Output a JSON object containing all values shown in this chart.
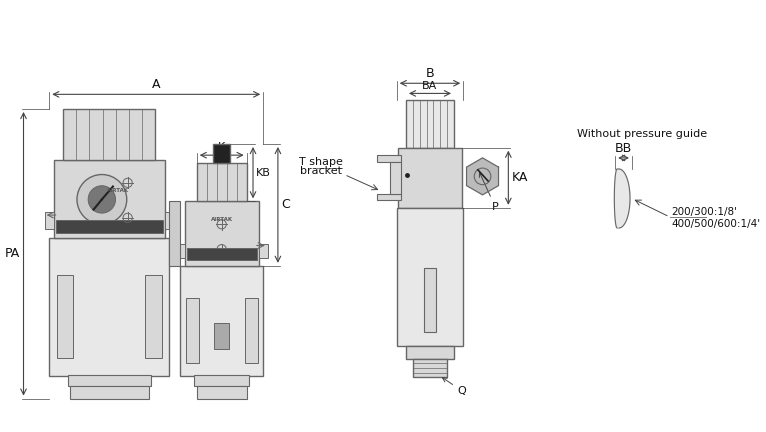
{
  "bg_color": "#ffffff",
  "line_color": "#666666",
  "dim_line_color": "#444444",
  "body_fill": "#d8d8d8",
  "body_fill2": "#e8e8e8",
  "dark_fill": "#999999",
  "black_fill": "#222222",
  "annotation_T_shape_line1": "T shape",
  "annotation_T_shape_line2": "bracket",
  "annotation_without_pg": "Without pressure guide",
  "annotation_200": "200/300:1/8'",
  "annotation_400": "400/500/600:1/4'"
}
